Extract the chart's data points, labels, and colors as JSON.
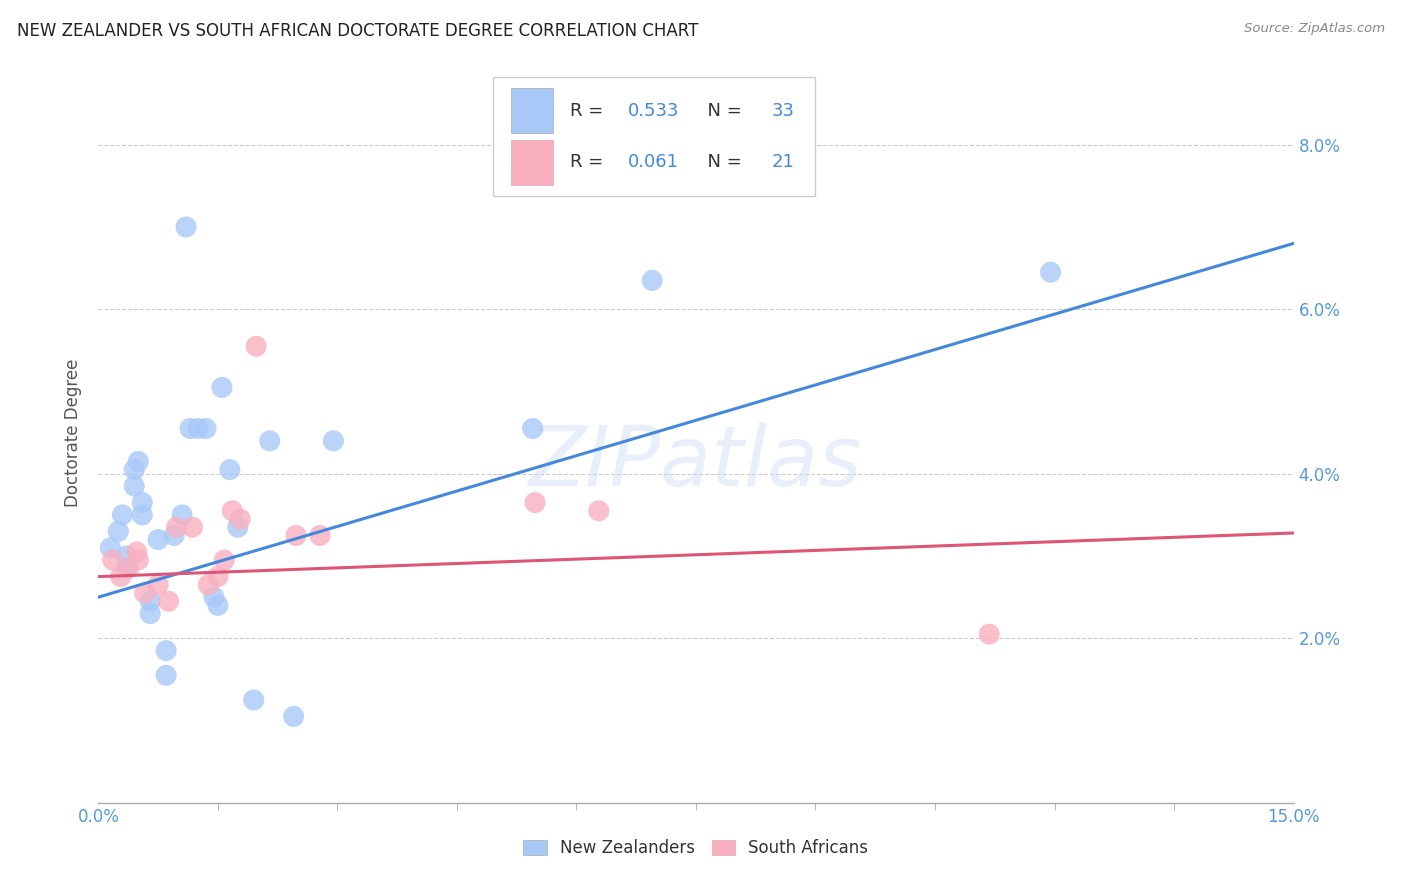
{
  "title": "NEW ZEALANDER VS SOUTH AFRICAN DOCTORATE DEGREE CORRELATION CHART",
  "source": "Source: ZipAtlas.com",
  "ylabel": "Doctorate Degree",
  "xmin": 0.0,
  "xmax": 15.0,
  "ymin": 0.0,
  "ymax": 9.0,
  "yticks": [
    2.0,
    4.0,
    6.0,
    8.0
  ],
  "xticks_minor": [
    1.5,
    3.0,
    4.5,
    6.0,
    7.5,
    9.0,
    10.5,
    12.0,
    13.5
  ],
  "nz_R": 0.533,
  "nz_N": 33,
  "sa_R": 0.061,
  "sa_N": 21,
  "nz_color": "#a8c8f8",
  "sa_color": "#f8b0c0",
  "nz_line_color": "#4488dd",
  "sa_line_color": "#dd5577",
  "legend_text_color": "#333333",
  "legend_value_color": "#4488dd",
  "tick_label_color": "#5599dd",
  "watermark": "ZIPatlas",
  "nz_points": [
    [
      0.15,
      3.1
    ],
    [
      0.25,
      3.3
    ],
    [
      0.3,
      3.5
    ],
    [
      0.35,
      3.0
    ],
    [
      0.35,
      2.85
    ],
    [
      0.45,
      3.85
    ],
    [
      0.45,
      4.05
    ],
    [
      0.5,
      4.15
    ],
    [
      0.55,
      3.65
    ],
    [
      0.55,
      3.5
    ],
    [
      0.65,
      2.45
    ],
    [
      0.65,
      2.3
    ],
    [
      0.75,
      3.2
    ],
    [
      0.85,
      1.55
    ],
    [
      0.85,
      1.85
    ],
    [
      0.95,
      3.25
    ],
    [
      1.05,
      3.5
    ],
    [
      1.15,
      4.55
    ],
    [
      1.25,
      4.55
    ],
    [
      1.35,
      4.55
    ],
    [
      1.45,
      2.5
    ],
    [
      1.5,
      2.4
    ],
    [
      1.55,
      5.05
    ],
    [
      1.65,
      4.05
    ],
    [
      1.75,
      3.35
    ],
    [
      1.95,
      1.25
    ],
    [
      2.15,
      4.4
    ],
    [
      2.45,
      1.05
    ],
    [
      2.95,
      4.4
    ],
    [
      5.45,
      4.55
    ],
    [
      6.95,
      6.35
    ],
    [
      1.1,
      7.0
    ],
    [
      11.95,
      6.45
    ]
  ],
  "sa_points": [
    [
      0.18,
      2.95
    ],
    [
      0.28,
      2.75
    ],
    [
      0.38,
      2.85
    ],
    [
      0.48,
      3.05
    ],
    [
      0.5,
      2.95
    ],
    [
      0.58,
      2.55
    ],
    [
      0.75,
      2.65
    ],
    [
      0.88,
      2.45
    ],
    [
      0.98,
      3.35
    ],
    [
      1.18,
      3.35
    ],
    [
      1.38,
      2.65
    ],
    [
      1.5,
      2.75
    ],
    [
      1.58,
      2.95
    ],
    [
      1.68,
      3.55
    ],
    [
      1.78,
      3.45
    ],
    [
      1.98,
      5.55
    ],
    [
      2.48,
      3.25
    ],
    [
      2.78,
      3.25
    ],
    [
      5.48,
      3.65
    ],
    [
      6.28,
      3.55
    ],
    [
      11.18,
      2.05
    ]
  ],
  "nz_trendline": [
    [
      0.0,
      2.5
    ],
    [
      15.0,
      6.8
    ]
  ],
  "sa_trendline": [
    [
      0.0,
      2.75
    ],
    [
      15.0,
      3.28
    ]
  ]
}
